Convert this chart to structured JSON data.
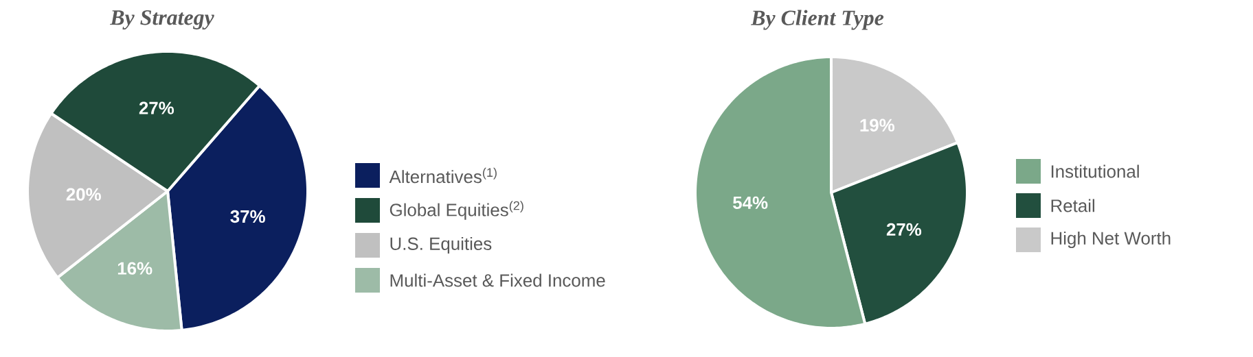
{
  "chart_data": [
    {
      "type": "pie",
      "title": "By Strategy",
      "categories": [
        "Alternatives$^{(1)}$",
        "Global Equities$^{(2)}$",
        "U.S. Equities",
        "Multi-Asset & Fixed Income"
      ],
      "values": [
        37,
        27,
        20,
        16
      ],
      "colors": [
        "#0b1f5e",
        "#1f4a3a",
        "#c0c0c0",
        "#9dbba7"
      ],
      "value_labels": [
        "37%",
        "27%",
        "20%",
        "16%"
      ],
      "legend": "right"
    },
    {
      "type": "pie",
      "title": "By Client Type",
      "categories": [
        "Institutional",
        "Retail",
        "High Net Worth"
      ],
      "values": [
        54,
        27,
        19
      ],
      "colors": [
        "#7ba889",
        "#224f3e",
        "#c9c9c9"
      ],
      "value_labels": [
        "54%",
        "27%",
        "19%"
      ],
      "legend": "right"
    }
  ]
}
